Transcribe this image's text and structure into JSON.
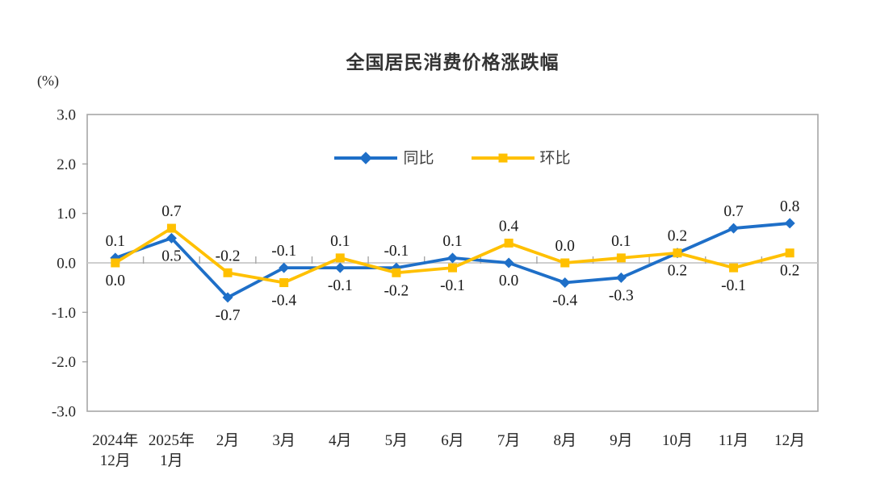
{
  "title": "全国居民消费价格涨跌幅",
  "y_axis_unit": "(%)",
  "colors": {
    "series_tongbi": "#1E6FC8",
    "series_huanbi": "#FFC000",
    "axis_border": "#A6A6A6",
    "zero_line": "#C8C8C8",
    "tick": "#A6A6A6",
    "data_label": "#1A1A1A",
    "axis_label": "#262626",
    "title": "#333333",
    "background": "#FFFFFF"
  },
  "chart_data": {
    "type": "line",
    "title": "全国居民消费价格涨跌幅",
    "ylabel": "(%)",
    "xlabel": "",
    "ylim": [
      -3.0,
      3.0
    ],
    "ytick_step": 1.0,
    "ytick_labels": [
      "3.0",
      "2.0",
      "1.0",
      "0.0",
      "-1.0",
      "-2.0",
      "-3.0"
    ],
    "grid": "zero-line-only",
    "legend_position": "top-center-inside",
    "categories": [
      [
        "2024年",
        "12月"
      ],
      [
        "2025年",
        "1月"
      ],
      [
        "2月"
      ],
      [
        "3月"
      ],
      [
        "4月"
      ],
      [
        "5月"
      ],
      [
        "6月"
      ],
      [
        "7月"
      ],
      [
        "8月"
      ],
      [
        "9月"
      ],
      [
        "10月"
      ],
      [
        "11月"
      ],
      [
        "12月"
      ]
    ],
    "series": [
      {
        "name": "同比",
        "color": "#1E6FC8",
        "marker": "diamond",
        "values": [
          0.1,
          0.5,
          -0.7,
          -0.1,
          -0.1,
          -0.1,
          0.1,
          0.0,
          -0.4,
          -0.3,
          0.2,
          0.7,
          0.8
        ]
      },
      {
        "name": "环比",
        "color": "#FFC000",
        "marker": "square",
        "values": [
          0.0,
          0.7,
          -0.2,
          -0.4,
          0.1,
          -0.2,
          -0.1,
          0.4,
          0.0,
          0.1,
          0.2,
          -0.1,
          0.2
        ]
      }
    ]
  }
}
